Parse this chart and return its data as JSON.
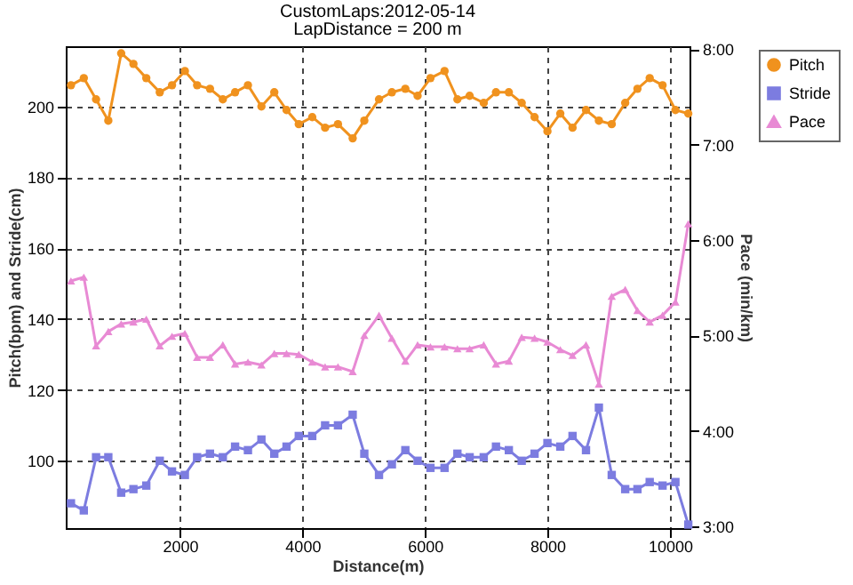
{
  "chart_data": {
    "type": "line",
    "title": "CustomLaps:2012-05-14",
    "subtitle": "LapDistance = 200 m",
    "xlabel": "Distance(m)",
    "ylabel": "Pitch(bpm) and Stride(cm)",
    "y2label": "Pace (min/km)",
    "x": [
      220,
      430,
      630,
      830,
      1040,
      1240,
      1450,
      1670,
      1870,
      2080,
      2280,
      2490,
      2700,
      2900,
      3110,
      3330,
      3540,
      3740,
      3940,
      4160,
      4370,
      4580,
      4820,
      5010,
      5250,
      5460,
      5680,
      5880,
      6090,
      6320,
      6530,
      6730,
      6960,
      7160,
      7370,
      7580,
      7790,
      8000,
      8210,
      8410,
      8630,
      8840,
      9050,
      9270,
      9470,
      9670,
      9880,
      10090,
      10300
    ],
    "series": [
      {
        "name": "Pitch",
        "color": "#f0921e",
        "marker": "circle",
        "values": [
          206,
          208,
          202,
          196,
          215,
          212,
          208,
          204,
          206,
          210,
          206,
          205,
          202,
          204,
          206,
          200,
          204,
          199,
          195,
          197,
          194,
          195,
          191,
          196,
          202,
          204,
          205,
          203,
          208,
          210,
          202,
          203,
          201,
          204,
          204,
          201,
          197,
          193,
          198,
          194,
          199,
          196,
          195,
          201,
          205,
          208,
          206,
          199,
          198
        ]
      },
      {
        "name": "Stride",
        "color": "#7c7ce0",
        "marker": "square",
        "values": [
          88,
          86,
          101,
          101,
          91,
          92,
          93,
          100,
          97,
          96,
          101,
          102,
          101,
          104,
          103,
          106,
          102,
          104,
          107,
          107,
          110,
          110,
          113,
          102,
          96,
          99,
          103,
          100,
          98,
          98,
          102,
          101,
          101,
          104,
          103,
          100,
          102,
          105,
          104,
          107,
          103,
          115,
          96,
          92,
          92,
          94,
          93,
          94,
          82
        ]
      },
      {
        "name": "Pace",
        "color": "#e88ad4",
        "marker": "triangle",
        "axis": "y2",
        "values": [
          5.57,
          5.61,
          4.89,
          5.04,
          5.12,
          5.14,
          5.17,
          4.89,
          4.99,
          5.02,
          4.77,
          4.77,
          4.9,
          4.7,
          4.72,
          4.69,
          4.81,
          4.81,
          4.8,
          4.72,
          4.67,
          4.67,
          4.62,
          5.0,
          5.21,
          4.97,
          4.73,
          4.9,
          4.88,
          4.88,
          4.86,
          4.86,
          4.9,
          4.7,
          4.73,
          4.98,
          4.97,
          4.93,
          4.85,
          4.79,
          4.9,
          4.49,
          5.41,
          5.48,
          5.26,
          5.14,
          5.21,
          5.35,
          6.17
        ]
      }
    ],
    "xlim": [
      135,
      10320
    ],
    "xticks": [
      2000,
      4000,
      6000,
      8000,
      10000
    ],
    "ylim": [
      81,
      217
    ],
    "yticks": [
      100,
      120,
      140,
      160,
      180,
      200
    ],
    "y2lim": [
      2.98,
      8.03
    ],
    "y2ticks": [
      {
        "value": 3,
        "label": "3:00"
      },
      {
        "value": 4,
        "label": "4:00"
      },
      {
        "value": 5,
        "label": "5:00"
      },
      {
        "value": 6,
        "label": "6:00"
      },
      {
        "value": 7,
        "label": "7:00"
      },
      {
        "value": 8,
        "label": "8:00"
      }
    ],
    "grid": true,
    "legend": "top right",
    "line_style": "solid"
  }
}
